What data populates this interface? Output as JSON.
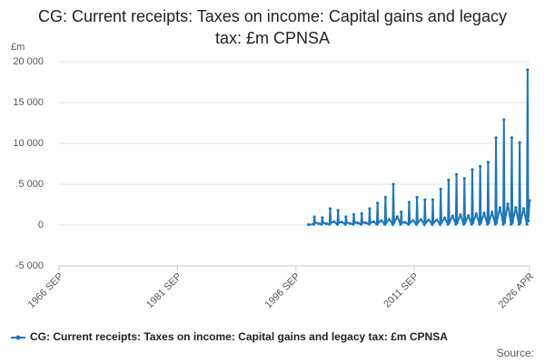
{
  "chart_data": {
    "type": "line",
    "title": "CG: Current receipts: Taxes on income: Capital gains and legacy tax: £m CPNSA",
    "y_unit": "£m",
    "source": "Source:",
    "x": [
      "1998 APR",
      "1998 DEC",
      "1999 JAN",
      "1999 FEB",
      "1999 JUL",
      "1999 DEC",
      "2000 JAN",
      "2000 FEB",
      "2000 JUL",
      "2000 DEC",
      "2001 JAN",
      "2001 FEB",
      "2001 JUL",
      "2001 DEC",
      "2002 JAN",
      "2002 FEB",
      "2002 JUL",
      "2002 DEC",
      "2003 JAN",
      "2003 FEB",
      "2003 JUL",
      "2003 DEC",
      "2004 JAN",
      "2004 FEB",
      "2004 JUL",
      "2004 DEC",
      "2005 JAN",
      "2005 FEB",
      "2005 JUL",
      "2005 DEC",
      "2006 JAN",
      "2006 FEB",
      "2006 JUL",
      "2006 DEC",
      "2007 JAN",
      "2007 FEB",
      "2007 JUL",
      "2007 DEC",
      "2008 JAN",
      "2008 FEB",
      "2008 JUL",
      "2008 DEC",
      "2009 JAN",
      "2009 FEB",
      "2009 JUL",
      "2009 DEC",
      "2010 JAN",
      "2010 FEB",
      "2010 JUL",
      "2010 DEC",
      "2011 JAN",
      "2011 FEB",
      "2011 JUL",
      "2011 DEC",
      "2012 JAN",
      "2012 FEB",
      "2012 JUL",
      "2012 DEC",
      "2013 JAN",
      "2013 FEB",
      "2013 JUL",
      "2013 DEC",
      "2014 JAN",
      "2014 FEB",
      "2014 JUL",
      "2014 DEC",
      "2015 JAN",
      "2015 FEB",
      "2015 JUL",
      "2015 DEC",
      "2016 JAN",
      "2016 FEB",
      "2016 JUL",
      "2016 DEC",
      "2017 JAN",
      "2017 FEB",
      "2017 JUL",
      "2017 DEC",
      "2018 JAN",
      "2018 FEB",
      "2018 JUL",
      "2018 DEC",
      "2019 JAN",
      "2019 FEB",
      "2019 JUL",
      "2019 DEC",
      "2020 JAN",
      "2020 FEB",
      "2020 JUL",
      "2020 DEC",
      "2021 JAN",
      "2021 FEB",
      "2021 JUL",
      "2021 DEC",
      "2022 JAN",
      "2022 FEB",
      "2022 JUL",
      "2022 DEC",
      "2023 JAN",
      "2023 FEB",
      "2023 JUL",
      "2023 DEC",
      "2024 JAN",
      "2024 FEB",
      "2024 JUL",
      "2024 DEC",
      "2025 JAN",
      "2025 FEB",
      "2025 JUL",
      "2025 DEC",
      "2026 JAN",
      "2026 FEB",
      "2026 APR"
    ],
    "series": [
      {
        "name": "CG: Current receipts: Taxes on income: Capital gains and legacy tax: £m CPNSA",
        "color": "#1f77b4",
        "values": [
          50,
          100,
          1000,
          300,
          200,
          100,
          900,
          300,
          180,
          100,
          2000,
          300,
          400,
          100,
          1800,
          300,
          360,
          100,
          1000,
          300,
          200,
          100,
          1300,
          300,
          260,
          100,
          1400,
          300,
          280,
          100,
          2000,
          300,
          400,
          100,
          2700,
          300,
          540,
          100,
          3400,
          300,
          680,
          100,
          5000,
          300,
          1000,
          100,
          1600,
          300,
          320,
          100,
          2800,
          300,
          560,
          100,
          3400,
          300,
          680,
          100,
          3100,
          300,
          620,
          100,
          3100,
          300,
          620,
          100,
          4400,
          300,
          880,
          100,
          5500,
          300,
          1100,
          100,
          6200,
          300,
          1240,
          100,
          5700,
          300,
          1140,
          100,
          6800,
          300,
          1360,
          100,
          7200,
          300,
          1440,
          100,
          7700,
          300,
          1540,
          100,
          10700,
          300,
          2140,
          100,
          12900,
          300,
          2580,
          100,
          10700,
          300,
          2140,
          100,
          10100,
          300,
          2020,
          100,
          19000,
          500,
          3000
        ]
      }
    ],
    "xlim": [
      "1966 SEP",
      "2026 APR"
    ],
    "xticks": [
      "1966 SEP",
      "1981 SEP",
      "1996 SEP",
      "2011 SEP",
      "2026 APR"
    ],
    "ylim": [
      -5000,
      20000
    ],
    "yticks": [
      {
        "value": -5000,
        "label": "-5 000"
      },
      0,
      {
        "value": 5000,
        "label": "5 000"
      },
      {
        "value": 10000,
        "label": "10 000"
      },
      {
        "value": 15000,
        "label": "15 000"
      },
      {
        "value": 20000,
        "label": "20 000"
      }
    ],
    "grid": true
  }
}
